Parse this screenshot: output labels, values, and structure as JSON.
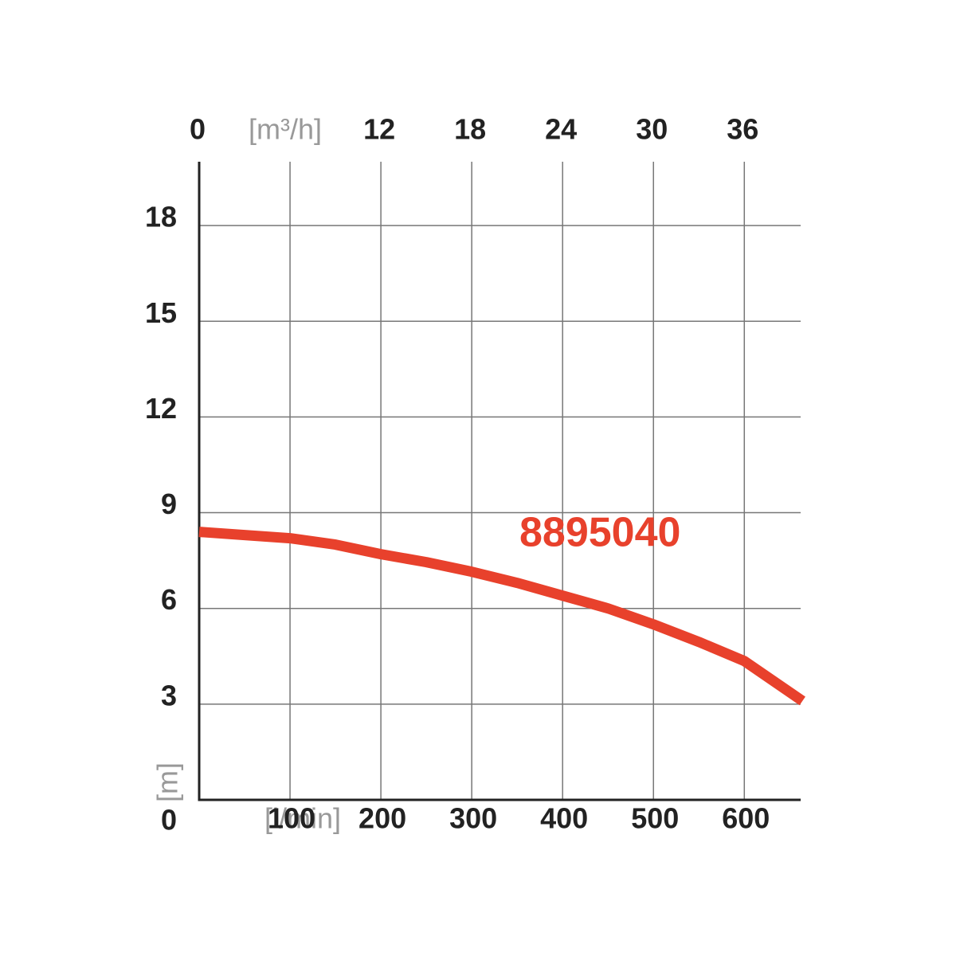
{
  "chart_data": {
    "type": "line",
    "x_label": "[l/min]",
    "y_label": "[m]",
    "x2_label": "[m³/h]",
    "xlim": [
      0,
      662
    ],
    "xticks": [
      100,
      200,
      300,
      400,
      500,
      600
    ],
    "x2lim": [
      0,
      39.72
    ],
    "x2ticks": [
      0,
      12,
      18,
      24,
      30,
      36
    ],
    "ylim": [
      0,
      20
    ],
    "yticks": [
      0,
      3,
      6,
      9,
      12,
      15,
      18
    ],
    "grid": true,
    "x": [
      0,
      50,
      100,
      150,
      200,
      250,
      300,
      350,
      400,
      450,
      500,
      550,
      600,
      664
    ],
    "series": [
      {
        "name": "8895040",
        "color": "#e8412c",
        "values": [
          8.4,
          8.3,
          8.2,
          8.0,
          7.7,
          7.45,
          7.15,
          6.8,
          6.4,
          6.0,
          5.5,
          4.95,
          4.35,
          3.1
        ]
      }
    ]
  }
}
